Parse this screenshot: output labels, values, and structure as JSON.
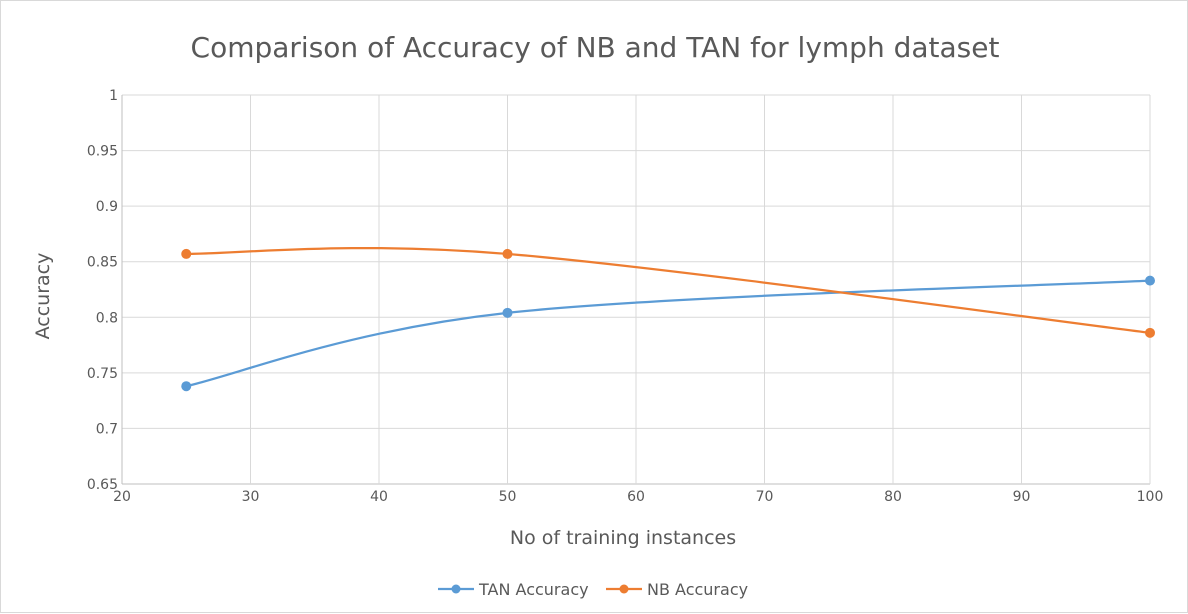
{
  "chart_data": {
    "type": "line",
    "title": "Comparison of Accuracy of NB and TAN for lymph dataset",
    "xlabel": "No of training instances",
    "ylabel": "Accuracy",
    "xlim": [
      20,
      100
    ],
    "ylim": [
      0.65,
      1
    ],
    "x_ticks": [
      20,
      30,
      40,
      50,
      60,
      70,
      80,
      90,
      100
    ],
    "y_ticks": [
      0.65,
      0.7,
      0.75,
      0.8,
      0.85,
      0.9,
      0.95,
      1
    ],
    "x_tick_labels": [
      "20",
      "30",
      "40",
      "50",
      "60",
      "70",
      "80",
      "90",
      "100"
    ],
    "y_tick_labels": [
      "0.65",
      "0.7",
      "0.75",
      "0.8",
      "0.85",
      "0.9",
      "0.95",
      "1"
    ],
    "grid": true,
    "smooth": true,
    "legend_position": "bottom",
    "series": [
      {
        "name": "TAN Accuracy",
        "color": "#5b9bd5",
        "points": [
          [
            25,
            0.738
          ],
          [
            50,
            0.804
          ],
          [
            100,
            0.833
          ]
        ]
      },
      {
        "name": "NB Accuracy",
        "color": "#ed7d31",
        "points": [
          [
            25,
            0.857
          ],
          [
            50,
            0.857
          ],
          [
            100,
            0.786
          ]
        ]
      }
    ]
  }
}
